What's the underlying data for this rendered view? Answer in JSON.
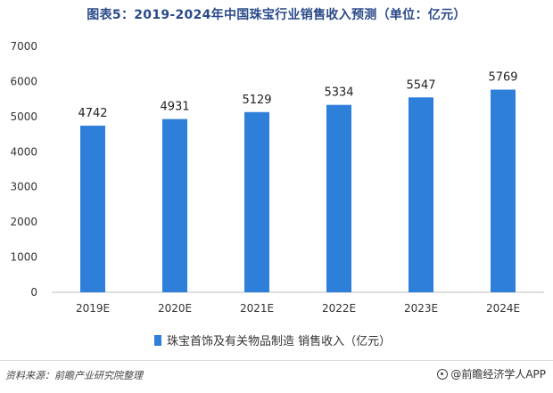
{
  "chart_data": {
    "type": "bar",
    "title": "图表5：2019-2024年中国珠宝行业销售收入预测（单位：亿元）",
    "categories": [
      "2019E",
      "2020E",
      "2021E",
      "2022E",
      "2023E",
      "2024E"
    ],
    "series": [
      {
        "name": "珠宝首饰及有关物品制造 销售收入（亿元）",
        "values": [
          4742,
          4931,
          5129,
          5334,
          5547,
          5769
        ],
        "color": "#2e7fd9"
      }
    ],
    "ylim": [
      0,
      7000
    ],
    "yticks": [
      0,
      1000,
      2000,
      3000,
      4000,
      5000,
      6000,
      7000
    ],
    "xlabel": "",
    "ylabel": "",
    "grid": false,
    "legend_position": "bottom"
  },
  "footer": {
    "source": "资料来源：前瞻产业研究院整理",
    "brand": "@前瞻经济学人APP"
  }
}
